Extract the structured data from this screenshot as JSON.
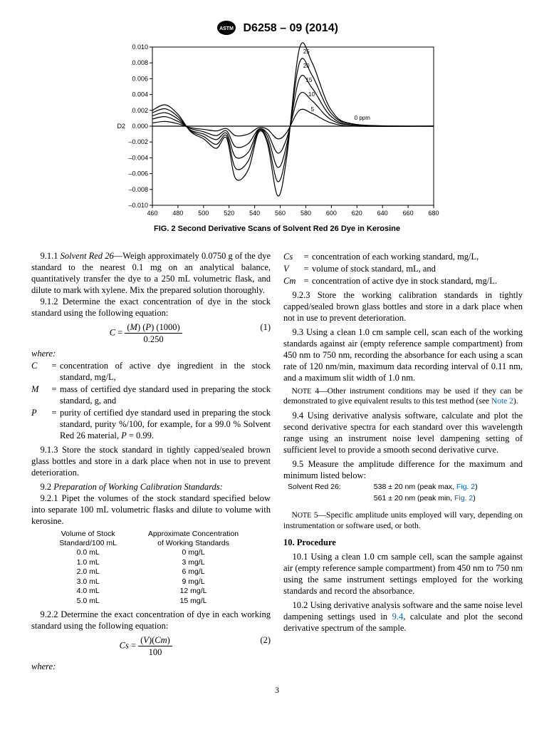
{
  "header": {
    "logo_text": "ASTM",
    "doc_number": "D6258 – 09 (2014)"
  },
  "chart": {
    "type": "line",
    "caption": "FIG. 2 Second Derivative Scans of Solvent Red 26 Dye in Kerosine",
    "xlabel": "",
    "ylabel": "D2",
    "xlim": [
      460,
      680
    ],
    "ylim": [
      -0.01,
      0.01
    ],
    "xtick_step": 20,
    "ytick_step": 0.002,
    "background_color": "#ffffff",
    "axis_color": "#000000",
    "line_color": "#000000",
    "line_width": 1.2,
    "tick_fontsize": 9,
    "label_fontsize": 9,
    "annotation_fontsize": 8,
    "series_labels": [
      "0 ppm",
      "5",
      "10",
      "15",
      "20",
      "25"
    ],
    "series": {
      "0": [
        [
          460,
          0
        ],
        [
          680,
          0
        ]
      ],
      "5": [
        [
          460,
          0.0004
        ],
        [
          470,
          0.0006
        ],
        [
          480,
          0.0003
        ],
        [
          490,
          -0.0002
        ],
        [
          500,
          -0.0004
        ],
        [
          510,
          -0.0006
        ],
        [
          518,
          -0.0003
        ],
        [
          525,
          -0.0012
        ],
        [
          535,
          -0.001
        ],
        [
          543,
          -0.0002
        ],
        [
          550,
          -0.0004
        ],
        [
          558,
          -0.0016
        ],
        [
          565,
          -0.0008
        ],
        [
          575,
          0.002
        ],
        [
          585,
          0.0016
        ],
        [
          600,
          0.0004
        ],
        [
          620,
          0
        ],
        [
          680,
          0
        ]
      ],
      "10": [
        [
          460,
          0.0009
        ],
        [
          470,
          0.0012
        ],
        [
          480,
          0.0006
        ],
        [
          490,
          -0.0003
        ],
        [
          500,
          -0.0007
        ],
        [
          510,
          -0.0012
        ],
        [
          518,
          -0.0006
        ],
        [
          525,
          -0.0026
        ],
        [
          535,
          -0.0022
        ],
        [
          543,
          -0.0004
        ],
        [
          550,
          -0.0009
        ],
        [
          558,
          -0.0034
        ],
        [
          565,
          -0.0016
        ],
        [
          575,
          0.004
        ],
        [
          585,
          0.0032
        ],
        [
          600,
          0.0008
        ],
        [
          620,
          0.0001
        ],
        [
          680,
          0
        ]
      ],
      "15": [
        [
          460,
          0.0013
        ],
        [
          470,
          0.0017
        ],
        [
          480,
          0.0009
        ],
        [
          490,
          -0.0005
        ],
        [
          500,
          -0.001
        ],
        [
          510,
          -0.0017
        ],
        [
          518,
          -0.0009
        ],
        [
          525,
          -0.0039
        ],
        [
          535,
          -0.0033
        ],
        [
          543,
          -0.0005
        ],
        [
          550,
          -0.0013
        ],
        [
          558,
          -0.0052
        ],
        [
          565,
          -0.0024
        ],
        [
          575,
          0.006
        ],
        [
          585,
          0.0048
        ],
        [
          600,
          0.0012
        ],
        [
          620,
          0.0001
        ],
        [
          680,
          0
        ]
      ],
      "20": [
        [
          460,
          0.0017
        ],
        [
          470,
          0.0022
        ],
        [
          480,
          0.0012
        ],
        [
          490,
          -0.0006
        ],
        [
          500,
          -0.0013
        ],
        [
          510,
          -0.0023
        ],
        [
          518,
          -0.0012
        ],
        [
          525,
          -0.0053
        ],
        [
          535,
          -0.0044
        ],
        [
          543,
          -0.0006
        ],
        [
          550,
          -0.0018
        ],
        [
          558,
          -0.007
        ],
        [
          565,
          -0.0032
        ],
        [
          575,
          0.008
        ],
        [
          585,
          0.0064
        ],
        [
          600,
          0.0016
        ],
        [
          620,
          0.0002
        ],
        [
          680,
          0
        ]
      ],
      "25": [
        [
          460,
          0.002
        ],
        [
          470,
          0.0027
        ],
        [
          480,
          0.0015
        ],
        [
          490,
          -0.0007
        ],
        [
          500,
          -0.0016
        ],
        [
          510,
          -0.0028
        ],
        [
          518,
          -0.0015
        ],
        [
          525,
          -0.0066
        ],
        [
          535,
          -0.0055
        ],
        [
          543,
          -0.0008
        ],
        [
          550,
          -0.0022
        ],
        [
          558,
          -0.0088
        ],
        [
          565,
          -0.004
        ],
        [
          575,
          0.0098
        ],
        [
          585,
          0.008
        ],
        [
          600,
          0.002
        ],
        [
          620,
          0.0002
        ],
        [
          680,
          0
        ]
      ]
    },
    "annotation_positions": {
      "25": [
        578,
        0.0092
      ],
      "20": [
        578,
        0.0074
      ],
      "15": [
        580,
        0.0056
      ],
      "10": [
        582,
        0.0038
      ],
      "5": [
        584,
        0.0019
      ],
      "0 ppm": [
        618,
        0.0008
      ]
    }
  },
  "left": {
    "p911": "9.1.1 ",
    "p911_it": "Solvent Red 26",
    "p911_rest": "—Weigh approximately 0.0750 g of the dye standard to the nearest 0.1 mg on an analytical balance, quantitatively transfer the dye to a 250 mL volumetric flask, and dilute to mark with xylene. Mix the prepared solution thoroughly.",
    "p912": "9.1.2 Determine the exact concentration of dye in the stock standard using the following equation:",
    "eq1_num": "(1)",
    "where": "where:",
    "wc_sym": "C",
    "wc_def": "concentration of active dye ingredient in the stock standard, mg/L,",
    "wm_sym": "M",
    "wm_def": "mass of certified dye standard used in preparing the stock standard, g, and",
    "wp_sym": "P",
    "wp_def": "purity of certified dye standard used in preparing the stock standard, purity %/100, for example, for a 99.0 % Solvent Red 26 material, ",
    "wp_tail_it": "P",
    "wp_tail": " = 0.99.",
    "p913": "9.1.3 Store the stock standard in tightly capped/sealed brown glass bottles and store in a dark place when not in use to prevent deterioration.",
    "p92": "9.2 ",
    "p92_it": "Preparation of Working Calibration Standards:",
    "p921": "9.2.1 Pipet the volumes of the stock standard specified below into separate 100 mL volumetric flasks and dilute to volume with kerosine.",
    "table": {
      "col1_head_a": "Volume of Stock",
      "col1_head_b": "Standard/100 mL",
      "col2_head_a": "Approximate Concentration",
      "col2_head_b": "of Working Standards",
      "rows": [
        [
          "0.0 mL",
          "0 mg/L"
        ],
        [
          "1.0 mL",
          "3 mg/L"
        ],
        [
          "2.0 mL",
          "6 mg/L"
        ],
        [
          "3.0 mL",
          "9 mg/L"
        ],
        [
          "4.0 mL",
          "12 mg/L"
        ],
        [
          "5.0 mL",
          "15 mg/L"
        ]
      ]
    },
    "p922": "9.2.2 Determine the exact concentration of dye in each working standard using the following equation:",
    "eq2_num": "(2)",
    "where2": "where:"
  },
  "right": {
    "wcs_sym": "Cs",
    "wcs_def": "concentration of each working standard, mg/L,",
    "wv_sym": "V",
    "wv_def": "volume of stock standard, mL, and",
    "wcm_sym": "Cm",
    "wcm_def": "concentration of active dye in stock standard, mg/L.",
    "p923": "9.2.3 Store the working calibration standards in tightly capped/sealed brown glass bottles and store in a dark place when not in use to prevent deterioration.",
    "p93": "9.3 Using a clean 1.0 cm sample cell, scan each of the working standards against air (empty reference sample compartment) from 450 nm to 750 nm, recording the absorbance for each using a scan rate of 120 nm/min, maximum data recording interval of 0.11 nm, and a maximum slit width of 1.0 nm.",
    "note4_pre": "N",
    "note4_label": "OTE",
    "note4_text": " 4—Other instrument conditions may be used if they can be demonstrated to give equivalent results to this test method (see ",
    "note4_link": "Note 2",
    "note4_tail": ").",
    "p94": "9.4 Using derivative analysis software, calculate and plot the second derivative spectra for each standard over this wavelength range using an instrument noise level dampening setting of sufficient level to provide a smooth second derivative curve.",
    "p95": "9.5 Measure the amplitude difference for the maximum and minimum listed below:",
    "peak_name": "Solvent Red 26:",
    "peak_max": "538 ± 20 nm (peak max, ",
    "peak_max_link": "Fig. 2",
    "peak_max_tail": ")",
    "peak_min": "561 ± 20 nm (peak min, ",
    "peak_min_link": "Fig. 2",
    "peak_min_tail": ")",
    "note5_pre": "N",
    "note5_label": "OTE",
    "note5_text": " 5—Specific amplitude units employed will vary, depending on instrumentation or software used, or both.",
    "sec10": "10. Procedure",
    "p101": "10.1 Using a clean 1.0 cm sample cell, scan the sample against air (empty reference sample compartment) from 450 nm to 750 nm using the same instrument settings employed for the working standards and record the absorbance.",
    "p102a": "10.2 Using derivative analysis software and the same noise level dampening settings used in ",
    "p102link": "9.4",
    "p102b": ", calculate and plot the second derivative spectrum of the sample."
  },
  "pagenum": "3"
}
